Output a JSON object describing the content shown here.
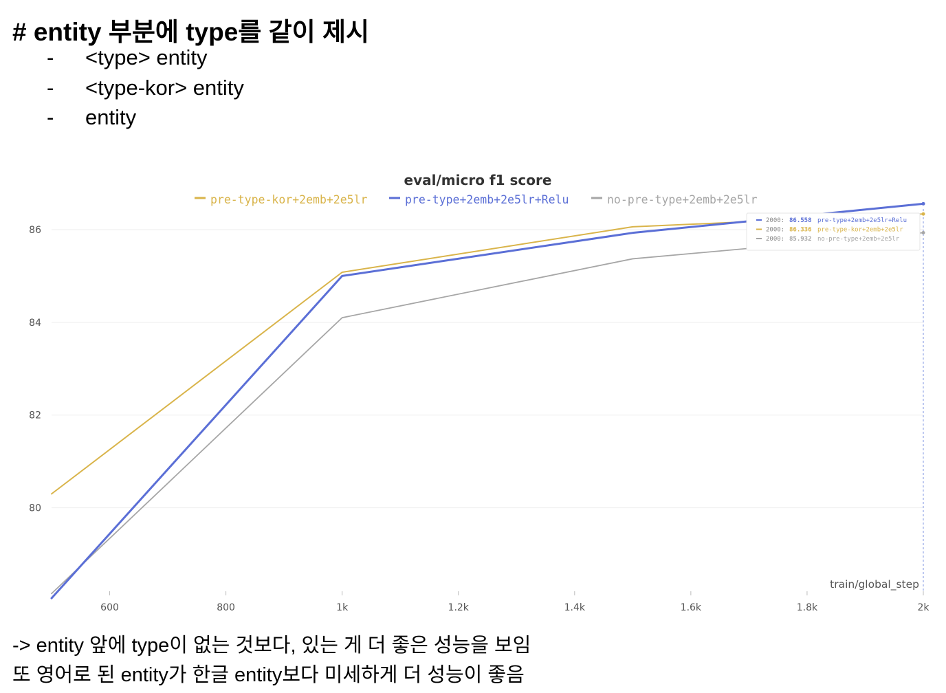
{
  "heading": "# entity 부분에 type를 같이 제시",
  "bullets": [
    {
      "dash": "-",
      "text": "<type> entity"
    },
    {
      "dash": "-",
      "text": "<type-kor> entity"
    },
    {
      "dash": "-",
      "text": "entity"
    }
  ],
  "chart_data": {
    "type": "line",
    "title": "eval/micro f1 score",
    "xlabel": "train/global_step",
    "ylabel": "",
    "xlim": [
      500,
      2000
    ],
    "ylim": [
      78.2,
      86.8
    ],
    "x_ticks": [
      {
        "value": 600,
        "label": "600"
      },
      {
        "value": 800,
        "label": "800"
      },
      {
        "value": 1000,
        "label": "1k"
      },
      {
        "value": 1200,
        "label": "1.2k"
      },
      {
        "value": 1400,
        "label": "1.4k"
      },
      {
        "value": 1600,
        "label": "1.6k"
      },
      {
        "value": 1800,
        "label": "1.8k"
      },
      {
        "value": 2000,
        "label": "2k"
      }
    ],
    "y_ticks": [
      80,
      82,
      84,
      86
    ],
    "grid": true,
    "legend": "top",
    "series": [
      {
        "name": "pre-type-kor+2emb+2e5lr",
        "color": "#d9b44a",
        "x": [
          500,
          1000,
          1500,
          2000
        ],
        "y": [
          80.3,
          85.08,
          86.06,
          86.336
        ]
      },
      {
        "name": "pre-type+2emb+2e5lr+Relu",
        "color": "#5b6fd6",
        "x": [
          500,
          1000,
          1500,
          2000
        ],
        "y": [
          78.05,
          85.0,
          85.93,
          86.558
        ]
      },
      {
        "name": "no-pre-type+2emb+2e5lr",
        "color": "#a6a6a6",
        "x": [
          500,
          1000,
          1500,
          2000
        ],
        "y": [
          78.15,
          84.1,
          85.37,
          85.932
        ]
      }
    ],
    "tooltip": {
      "x_label": "2000",
      "entries": [
        {
          "value": "86.558",
          "name": "pre-type+2emb+2e5lr+Relu",
          "color": "#5b6fd6"
        },
        {
          "value": "86.336",
          "name": "pre-type-kor+2emb+2e5lr",
          "color": "#d9b44a"
        },
        {
          "value": "85.932",
          "name": "no-pre-type+2emb+2e5lr",
          "color": "#a6a6a6"
        }
      ]
    }
  },
  "notes": [
    "-> entity 앞에 type이 없는 것보다, 있는 게 더 좋은 성능을 보임",
    "또 영어로 된 entity가 한글 entity보다 미세하게 더 성능이 좋음"
  ]
}
